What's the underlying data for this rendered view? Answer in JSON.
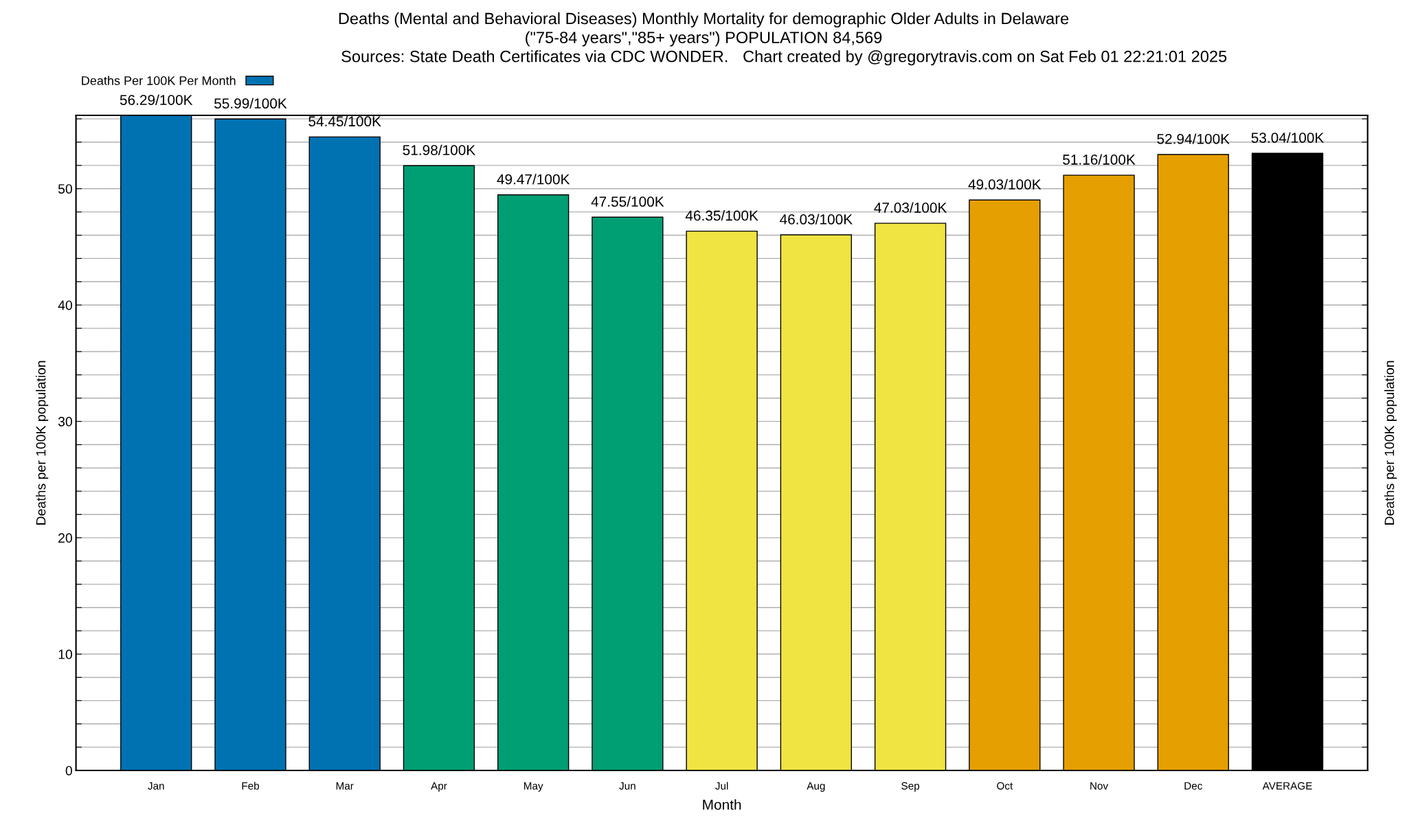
{
  "chart_data": {
    "type": "bar",
    "title": "Deaths (Mental and Behavioral Diseases) Monthly Mortality for demographic Older Adults in Delaware",
    "subtitle": "(\"75-84 years\",\"85+ years\") POPULATION 84,569",
    "annotations": [
      "Sources: State Death Certificates via CDC WONDER.",
      "Chart created by @gregorytravis.com on Sat Feb 01 22:21:01 2025"
    ],
    "xlabel": "Month",
    "ylabel": "Deaths per 100K population",
    "y2label": "Deaths per 100K population",
    "categories": [
      "Jan",
      "Feb",
      "Mar",
      "Apr",
      "May",
      "Jun",
      "Jul",
      "Aug",
      "Sep",
      "Oct",
      "Nov",
      "Dec",
      "AVERAGE"
    ],
    "series": [
      {
        "name": "Deaths Per 100K Per Month",
        "color": "#0072b2",
        "colors": [
          "#0072b2",
          "#0072b2",
          "#0072b2",
          "#009e73",
          "#009e73",
          "#009e73",
          "#f0e442",
          "#f0e442",
          "#f0e442",
          "#e69f00",
          "#e69f00",
          "#e69f00",
          "#000000"
        ],
        "values": [
          56.29,
          55.99,
          54.45,
          51.98,
          49.47,
          47.55,
          46.35,
          46.03,
          47.03,
          49.03,
          51.16,
          52.94,
          53.04
        ],
        "value_labels": [
          "56.29/100K",
          "55.99/100K",
          "54.45/100K",
          "51.98/100K",
          "49.47/100K",
          "47.55/100K",
          "46.35/100K",
          "46.03/100K",
          "47.03/100K",
          "49.03/100K",
          "51.16/100K",
          "52.94/100K",
          "53.04/100K"
        ]
      }
    ],
    "ylim": [
      0,
      56.3
    ],
    "yticks": [
      0,
      {
        "value": 2,
        "label": null
      },
      {
        "value": 4,
        "label": null
      },
      {
        "value": 6,
        "label": null
      },
      {
        "value": 8,
        "label": null
      },
      10,
      {
        "value": 12,
        "label": null
      },
      {
        "value": 14,
        "label": null
      },
      {
        "value": 16,
        "label": null
      },
      {
        "value": 18,
        "label": null
      },
      20,
      {
        "value": 22,
        "label": null
      },
      {
        "value": 24,
        "label": null
      },
      {
        "value": 26,
        "label": null
      },
      {
        "value": 28,
        "label": null
      },
      30,
      {
        "value": 32,
        "label": null
      },
      {
        "value": 34,
        "label": null
      },
      {
        "value": 36,
        "label": null
      },
      {
        "value": 38,
        "label": null
      },
      40,
      {
        "value": 42,
        "label": null
      },
      {
        "value": 44,
        "label": null
      },
      {
        "value": 46,
        "label": null
      },
      {
        "value": 48,
        "label": null
      },
      50,
      {
        "value": 52,
        "label": null
      },
      {
        "value": 54,
        "label": null
      },
      {
        "value": 56,
        "label": null
      }
    ],
    "grid": "y",
    "legend": "top left"
  }
}
